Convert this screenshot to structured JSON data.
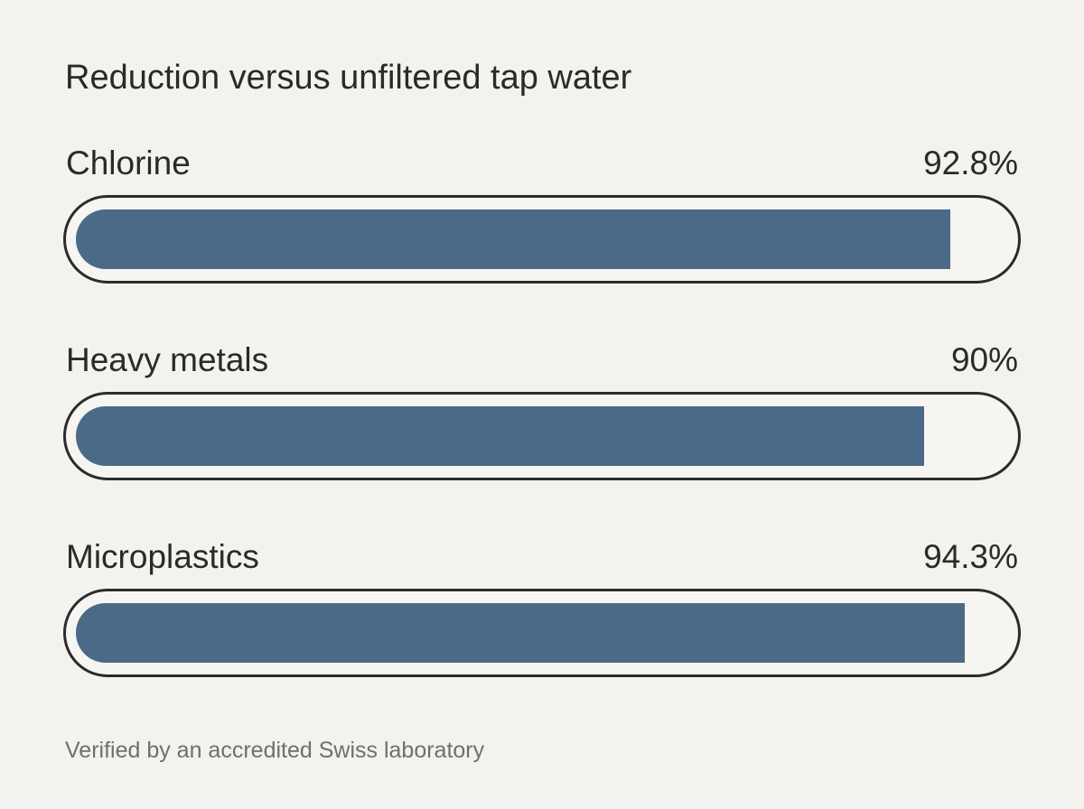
{
  "title": "Reduction versus unfiltered tap water",
  "footnote": "Verified by an accredited Swiss laboratory",
  "colors": {
    "background": "#f3f2ee",
    "bar_fill": "#4a6a87",
    "outline": "#2b2b2b",
    "text": "#2a2a2a",
    "muted_text": "#6f6f6f"
  },
  "chart_data": {
    "type": "bar",
    "title": "Reduction versus unfiltered tap water",
    "categories": [
      "Chlorine",
      "Heavy metals",
      "Microplastics"
    ],
    "values": [
      92.8,
      90,
      94.3
    ],
    "value_labels": [
      "92.8%",
      "90%",
      "94.3%"
    ],
    "unit": "%",
    "xlim": [
      0,
      100
    ],
    "orientation": "horizontal",
    "grid": false,
    "legend": "none"
  }
}
